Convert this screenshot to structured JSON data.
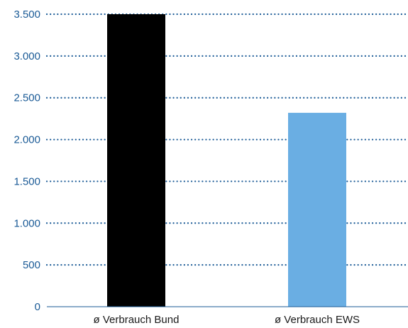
{
  "chart_data": {
    "type": "bar",
    "title": "",
    "xlabel": "",
    "ylabel": "",
    "categories": [
      "ø Verbrauch Bund",
      "ø Verbrauch EWS"
    ],
    "values": [
      3500,
      2320
    ],
    "bar_colors": [
      "#000000",
      "#6aaee3"
    ],
    "ylim": [
      0,
      3500
    ],
    "yticks": [
      0,
      500,
      1000,
      1500,
      2000,
      2500,
      3000,
      3500
    ],
    "ytick_labels": [
      "0",
      "500",
      "1.000",
      "1.500",
      "2.000",
      "2.500",
      "3.000",
      "3.500"
    ],
    "grid": true,
    "grid_style": "dotted",
    "legend": "none",
    "colors": {
      "axis_text": "#1a5a96",
      "grid": "#1a5a96",
      "category_text": "#1a1a1a",
      "baseline": "#1a5a96"
    }
  }
}
